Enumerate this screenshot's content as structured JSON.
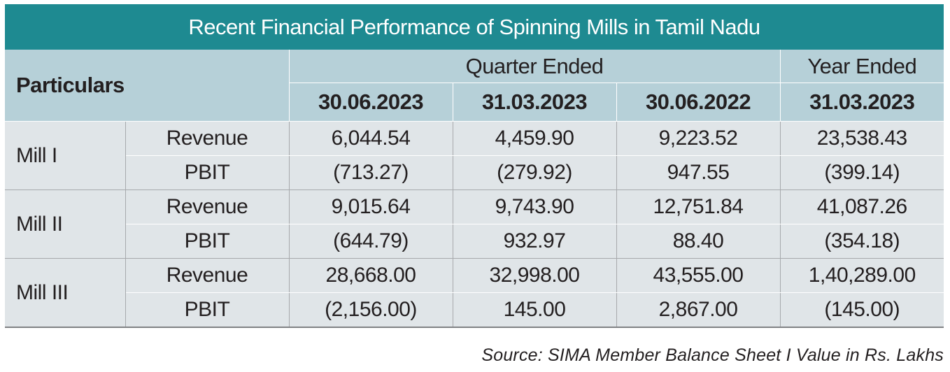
{
  "title": "Recent Financial Performance of Spinning Mills in Tamil Nadu",
  "header": {
    "particulars": "Particulars",
    "quarter_ended": "Quarter Ended",
    "year_ended": "Year Ended",
    "dates": [
      "30.06.2023",
      "31.03.2023",
      "30.06.2022",
      "31.03.2023"
    ]
  },
  "rows": [
    {
      "mill": "Mill I",
      "revenue": {
        "label": "Revenue",
        "values": [
          "6,044.54",
          "4,459.90",
          "9,223.52",
          "23,538.43"
        ]
      },
      "pbit": {
        "label": "PBIT",
        "values": [
          "(713.27)",
          "(279.92)",
          "947.55",
          "(399.14)"
        ]
      }
    },
    {
      "mill": "Mill II",
      "revenue": {
        "label": "Revenue",
        "values": [
          "9,015.64",
          "9,743.90",
          "12,751.84",
          "41,087.26"
        ]
      },
      "pbit": {
        "label": "PBIT",
        "values": [
          "(644.79)",
          "932.97",
          "88.40",
          "(354.18)"
        ]
      }
    },
    {
      "mill": "Mill III",
      "revenue": {
        "label": "Revenue",
        "values": [
          "28,668.00",
          "32,998.00",
          "43,555.00",
          "1,40,289.00"
        ]
      },
      "pbit": {
        "label": "PBIT",
        "values": [
          "(2,156.00)",
          "145.00",
          "2,867.00",
          "(145.00)"
        ]
      }
    }
  ],
  "source": "Source: SIMA Member Balance Sheet I Value in Rs. Lakhs",
  "colors": {
    "title_bar": "#1e8a91",
    "header_bg": "#b6d0d8",
    "body_bg": "#e0e5e8"
  }
}
